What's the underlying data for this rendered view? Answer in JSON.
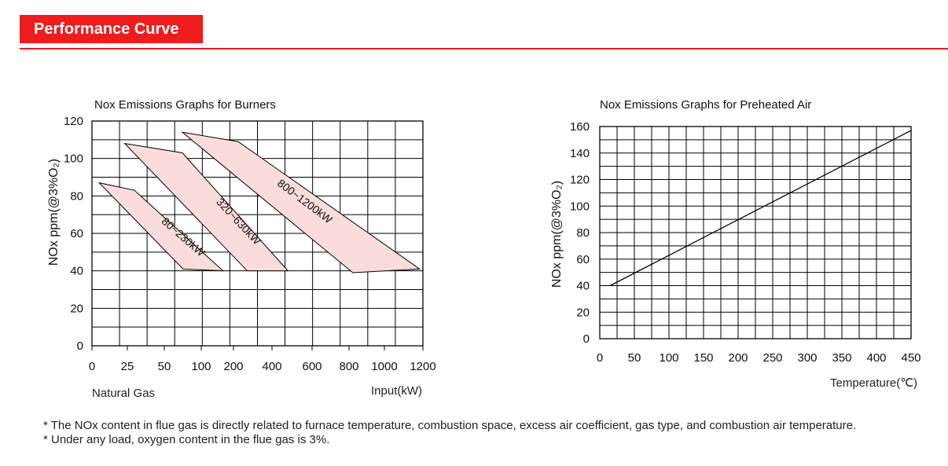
{
  "header": {
    "title": "Performance Curve"
  },
  "charts": [
    {
      "title": "Nox Emissions Graphs for Burners",
      "ylabel": "NOx ppm(@3%O₂)",
      "x_tick_labels": [
        "0",
        "25",
        "50",
        "100",
        "200",
        "400",
        "600",
        "800",
        "1000",
        "1200"
      ],
      "y_tick_labels": [
        "0",
        "20",
        "40",
        "60",
        "80",
        "100",
        "120"
      ],
      "sub_label": "Natural Gas",
      "xlabel": "Input(kW)"
    },
    {
      "title": "Nox Emissions Graphs for Preheated Air",
      "ylabel": "NOx ppm(@3%O₂)",
      "x_tick_labels": [
        "0",
        "50",
        "100",
        "150",
        "200",
        "250",
        "300",
        "350",
        "400",
        "450"
      ],
      "y_tick_labels": [
        "0",
        "20",
        "40",
        "60",
        "80",
        "100",
        "120",
        "140",
        "160"
      ],
      "xlabel": "Temperature(℃)"
    }
  ],
  "chart_data": [
    {
      "type": "area",
      "title": "Nox Emissions Graphs for Burners",
      "xlabel": "Input(kW)",
      "ylabel": "NOx ppm(@3%O₂)",
      "x_scale": "categorical ticks",
      "x_ticks": [
        "0",
        "25",
        "50",
        "100",
        "200",
        "400",
        "600",
        "800",
        "1000",
        "1200"
      ],
      "ylim": [
        0,
        120
      ],
      "grid": true,
      "series": [
        {
          "name": "80~230kW",
          "polygon": [
            [
              12,
              87
            ],
            [
              70,
              83
            ],
            [
              216,
              40
            ],
            [
              150,
              41
            ]
          ],
          "fill": "#fbdcdc"
        },
        {
          "name": "320~630kW",
          "polygon": [
            [
              54,
              108
            ],
            [
              149,
              103
            ],
            [
              323,
              40
            ],
            [
              256,
              40
            ]
          ],
          "fill": "#fbdcdc"
        },
        {
          "name": "800~1200kW",
          "polygon": [
            [
              149,
              114
            ],
            [
              241,
              109
            ],
            [
              540,
              41
            ],
            [
              430,
              39
            ]
          ],
          "fill": "#fbdcdc"
        }
      ]
    },
    {
      "type": "line",
      "title": "Nox Emissions Graphs for Preheated Air",
      "xlabel": "Temperature(℃)",
      "ylabel": "NOx ppm(@3%O₂)",
      "xlim": [
        0,
        450
      ],
      "ylim": [
        0,
        160
      ],
      "grid": true,
      "series": [
        {
          "x": [
            15,
            450
          ],
          "y": [
            40,
            157
          ]
        }
      ]
    }
  ],
  "notes": [
    "* The NOx content in flue gas is directly related to furnace temperature, combustion space, excess air coefficient, gas type, and combustion air temperature.",
    "* Under any load, oxygen content in the flue gas is 3%."
  ]
}
